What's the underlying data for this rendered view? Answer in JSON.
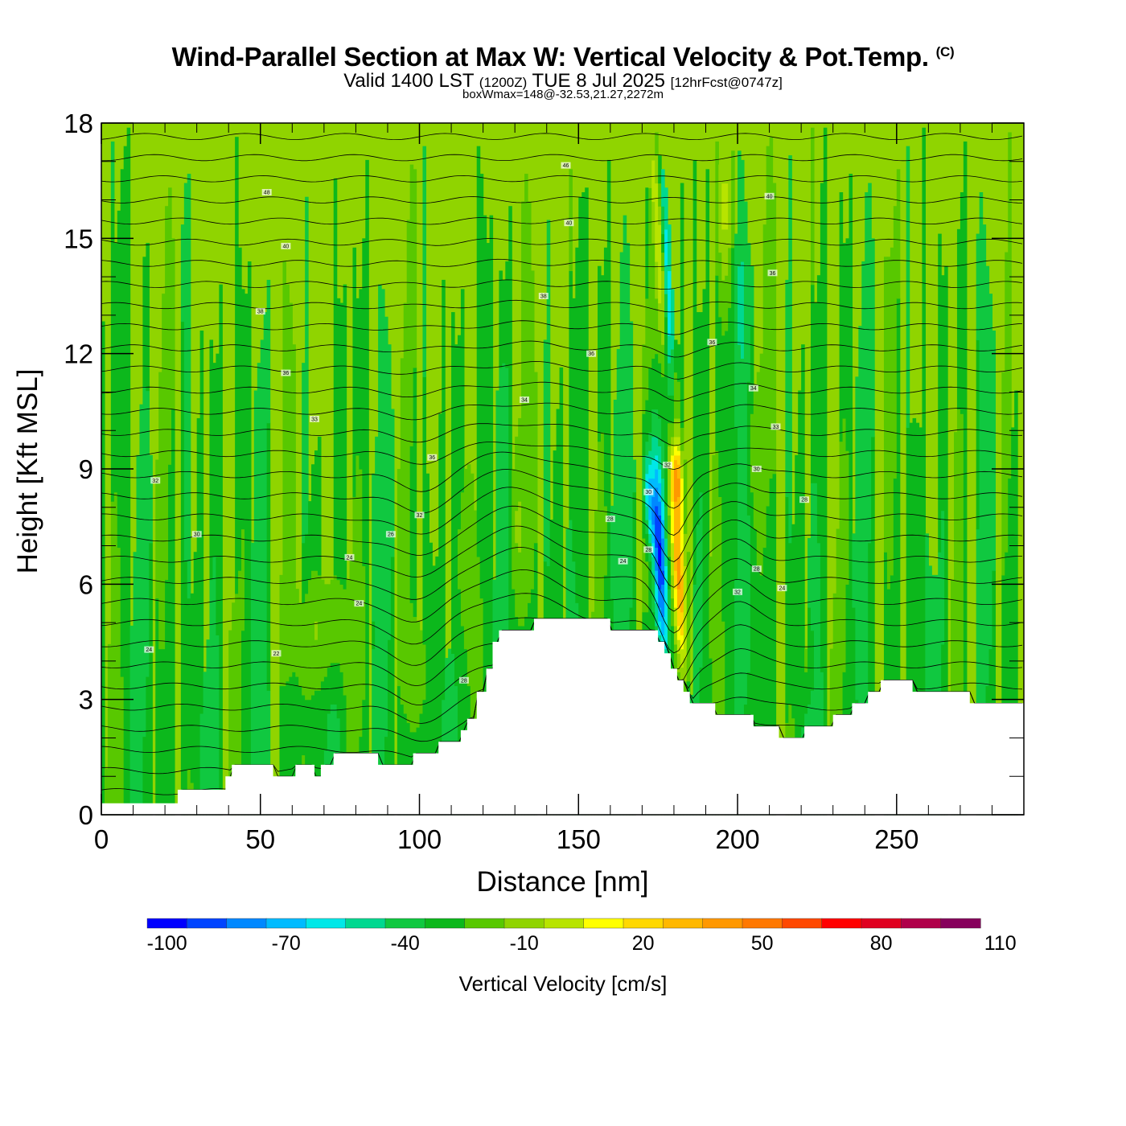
{
  "header": {
    "title": "Wind-Parallel Section at Max W: Vertical Velocity & Pot.Temp.",
    "copyright": "(C)",
    "valid_prefix": "Valid 1400 LST",
    "valid_utc": "(1200Z)",
    "valid_date": "TUE 8 Jul 2025",
    "forecast": "[12hrFcst@0747z]",
    "boxinfo": "boxWmax=148@-32.53,21.27,2272m"
  },
  "chart_data": {
    "type": "heatmap",
    "title": "Wind-Parallel Section at Max W: Vertical Velocity & Pot.Temp.",
    "xlabel": "Distance [nm]",
    "ylabel": "Height [Kft MSL]",
    "xlim": [
      0,
      290
    ],
    "ylim": [
      0,
      18
    ],
    "x_ticks": [
      0,
      50,
      100,
      150,
      200,
      250
    ],
    "y_ticks": [
      0,
      3,
      6,
      9,
      12,
      15,
      18
    ],
    "colorbar": {
      "title": "Vertical Velocity [cm/s]",
      "labels": [
        "-100",
        "-70",
        "-40",
        "-10",
        "20",
        "50",
        "80",
        "110"
      ],
      "colors": [
        "#0000ff",
        "#0044ff",
        "#0088ff",
        "#00bbff",
        "#00e8e8",
        "#00d890",
        "#10c840",
        "#0cb81c",
        "#58c800",
        "#90d400",
        "#b8e400",
        "#ffff00",
        "#ffd800",
        "#ffb800",
        "#ff9800",
        "#ff7800",
        "#ff4800",
        "#ff0000",
        "#e00020",
        "#b0004a",
        "#86005c"
      ]
    },
    "terrain_kft": [
      [
        0,
        0.3
      ],
      [
        24,
        0.3
      ],
      [
        24,
        0.65
      ],
      [
        39,
        0.65
      ],
      [
        39,
        1.0
      ],
      [
        41,
        1.0
      ],
      [
        41,
        1.3
      ],
      [
        54,
        1.3
      ],
      [
        54,
        1.0
      ],
      [
        61,
        1.0
      ],
      [
        61,
        1.3
      ],
      [
        67,
        1.3
      ],
      [
        67,
        1.0
      ],
      [
        69,
        1.0
      ],
      [
        69,
        1.3
      ],
      [
        73,
        1.3
      ],
      [
        73,
        1.6
      ],
      [
        87,
        1.6
      ],
      [
        87,
        1.3
      ],
      [
        98,
        1.3
      ],
      [
        98,
        1.6
      ],
      [
        106,
        1.6
      ],
      [
        106,
        1.9
      ],
      [
        113,
        1.9
      ],
      [
        113,
        2.2
      ],
      [
        115,
        2.2
      ],
      [
        115,
        2.5
      ],
      [
        118,
        2.5
      ],
      [
        118,
        3.2
      ],
      [
        121,
        3.2
      ],
      [
        121,
        3.8
      ],
      [
        123,
        3.8
      ],
      [
        123,
        4.5
      ],
      [
        125,
        4.5
      ],
      [
        125,
        4.8
      ],
      [
        136,
        4.8
      ],
      [
        136,
        5.1
      ],
      [
        160,
        5.1
      ],
      [
        160,
        4.8
      ],
      [
        175,
        4.8
      ],
      [
        175,
        4.5
      ],
      [
        177,
        4.5
      ],
      [
        177,
        4.2
      ],
      [
        179,
        4.2
      ],
      [
        179,
        3.8
      ],
      [
        181,
        3.8
      ],
      [
        181,
        3.5
      ],
      [
        183,
        3.5
      ],
      [
        183,
        3.2
      ],
      [
        185,
        3.2
      ],
      [
        185,
        2.9
      ],
      [
        193,
        2.9
      ],
      [
        193,
        2.6
      ],
      [
        205,
        2.6
      ],
      [
        205,
        2.3
      ],
      [
        213,
        2.3
      ],
      [
        213,
        2.0
      ],
      [
        221,
        2.0
      ],
      [
        221,
        2.3
      ],
      [
        230,
        2.3
      ],
      [
        230,
        2.6
      ],
      [
        236,
        2.6
      ],
      [
        236,
        2.9
      ],
      [
        241,
        2.9
      ],
      [
        241,
        3.2
      ],
      [
        245,
        3.2
      ],
      [
        245,
        3.5
      ],
      [
        255,
        3.5
      ],
      [
        255,
        3.2
      ],
      [
        273,
        3.2
      ],
      [
        273,
        2.9
      ],
      [
        290,
        2.9
      ]
    ],
    "w_features": [
      {
        "x": 70,
        "z": 4.8,
        "w": 26,
        "rx": 10,
        "rz": 1.6
      },
      {
        "x": 98,
        "z": 3.8,
        "w": 20,
        "rx": 4,
        "rz": 1.4
      },
      {
        "x": 113,
        "z": 6.5,
        "w": 18,
        "rx": 3,
        "rz": 2.5
      },
      {
        "x": 131,
        "z": 7.5,
        "w": 20,
        "rx": 3,
        "rz": 2.0
      },
      {
        "x": 127,
        "z": 16,
        "w": 16,
        "rx": 3,
        "rz": 3.5
      },
      {
        "x": 175.5,
        "z": 6.8,
        "w": -95,
        "rx": 2.0,
        "rz": 2.8
      },
      {
        "x": 172,
        "z": 8.3,
        "w": -60,
        "rx": 1.5,
        "rz": 1.2
      },
      {
        "x": 181.5,
        "z": 6.4,
        "w": 110,
        "rx": 2.1,
        "rz": 2.6
      },
      {
        "x": 181,
        "z": 8.8,
        "w": 85,
        "rx": 1.8,
        "rz": 1.0
      },
      {
        "x": 180.5,
        "z": 10.8,
        "w": 40,
        "rx": 1.5,
        "rz": 1.4
      },
      {
        "x": 176,
        "z": 14,
        "w": 50,
        "rx": 1.6,
        "rz": 2.5
      },
      {
        "x": 173,
        "z": 17,
        "w": 25,
        "rx": 1.6,
        "rz": 1.5
      },
      {
        "x": 178,
        "z": 13.5,
        "w": -45,
        "rx": 1.2,
        "rz": 4.5
      },
      {
        "x": 196,
        "z": 16,
        "w": 45,
        "rx": 3,
        "rz": 2.5
      },
      {
        "x": 201,
        "z": 14,
        "w": -20,
        "rx": 2,
        "rz": 3.5
      },
      {
        "x": 205,
        "z": 9.5,
        "w": 22,
        "rx": 3,
        "rz": 2
      },
      {
        "x": 222,
        "z": 4,
        "w": 18,
        "rx": 2,
        "rz": 1.0
      },
      {
        "x": 10,
        "z": 14,
        "w": 10,
        "rx": 6,
        "rz": 3
      }
    ],
    "theta_labels": [
      {
        "x": 15,
        "z": 4.3,
        "t": "24"
      },
      {
        "x": 30,
        "z": 7.3,
        "t": "30"
      },
      {
        "x": 17,
        "z": 8.7,
        "t": "32"
      },
      {
        "x": 55,
        "z": 4.2,
        "t": "22"
      },
      {
        "x": 78,
        "z": 6.7,
        "t": "24"
      },
      {
        "x": 81,
        "z": 5.5,
        "t": "24"
      },
      {
        "x": 91,
        "z": 7.3,
        "t": "26"
      },
      {
        "x": 100,
        "z": 7.8,
        "t": "32"
      },
      {
        "x": 104,
        "z": 9.3,
        "t": "36"
      },
      {
        "x": 67,
        "z": 10.3,
        "t": "33"
      },
      {
        "x": 58,
        "z": 11.5,
        "t": "36"
      },
      {
        "x": 50,
        "z": 13.1,
        "t": "38"
      },
      {
        "x": 58,
        "z": 14.8,
        "t": "40"
      },
      {
        "x": 52,
        "z": 16.2,
        "t": "48"
      },
      {
        "x": 133,
        "z": 10.8,
        "t": "34"
      },
      {
        "x": 154,
        "z": 12.0,
        "t": "36"
      },
      {
        "x": 139,
        "z": 13.5,
        "t": "38"
      },
      {
        "x": 147,
        "z": 15.4,
        "t": "40"
      },
      {
        "x": 146,
        "z": 16.9,
        "t": "46"
      },
      {
        "x": 160,
        "z": 7.7,
        "t": "28"
      },
      {
        "x": 164,
        "z": 6.6,
        "t": "24"
      },
      {
        "x": 172,
        "z": 8.4,
        "t": "30"
      },
      {
        "x": 172,
        "z": 6.9,
        "t": "28"
      },
      {
        "x": 178,
        "z": 9.1,
        "t": "32"
      },
      {
        "x": 192,
        "z": 12.3,
        "t": "36"
      },
      {
        "x": 205,
        "z": 11.1,
        "t": "34"
      },
      {
        "x": 212,
        "z": 10.1,
        "t": "33"
      },
      {
        "x": 206,
        "z": 9.0,
        "t": "30"
      },
      {
        "x": 211,
        "z": 14.1,
        "t": "36"
      },
      {
        "x": 210,
        "z": 16.1,
        "t": "40"
      },
      {
        "x": 221,
        "z": 8.2,
        "t": "28"
      },
      {
        "x": 206,
        "z": 6.4,
        "t": "28"
      },
      {
        "x": 214,
        "z": 5.9,
        "t": "24"
      },
      {
        "x": 200,
        "z": 5.8,
        "t": "32"
      },
      {
        "x": 114,
        "z": 3.5,
        "t": "28"
      }
    ]
  }
}
